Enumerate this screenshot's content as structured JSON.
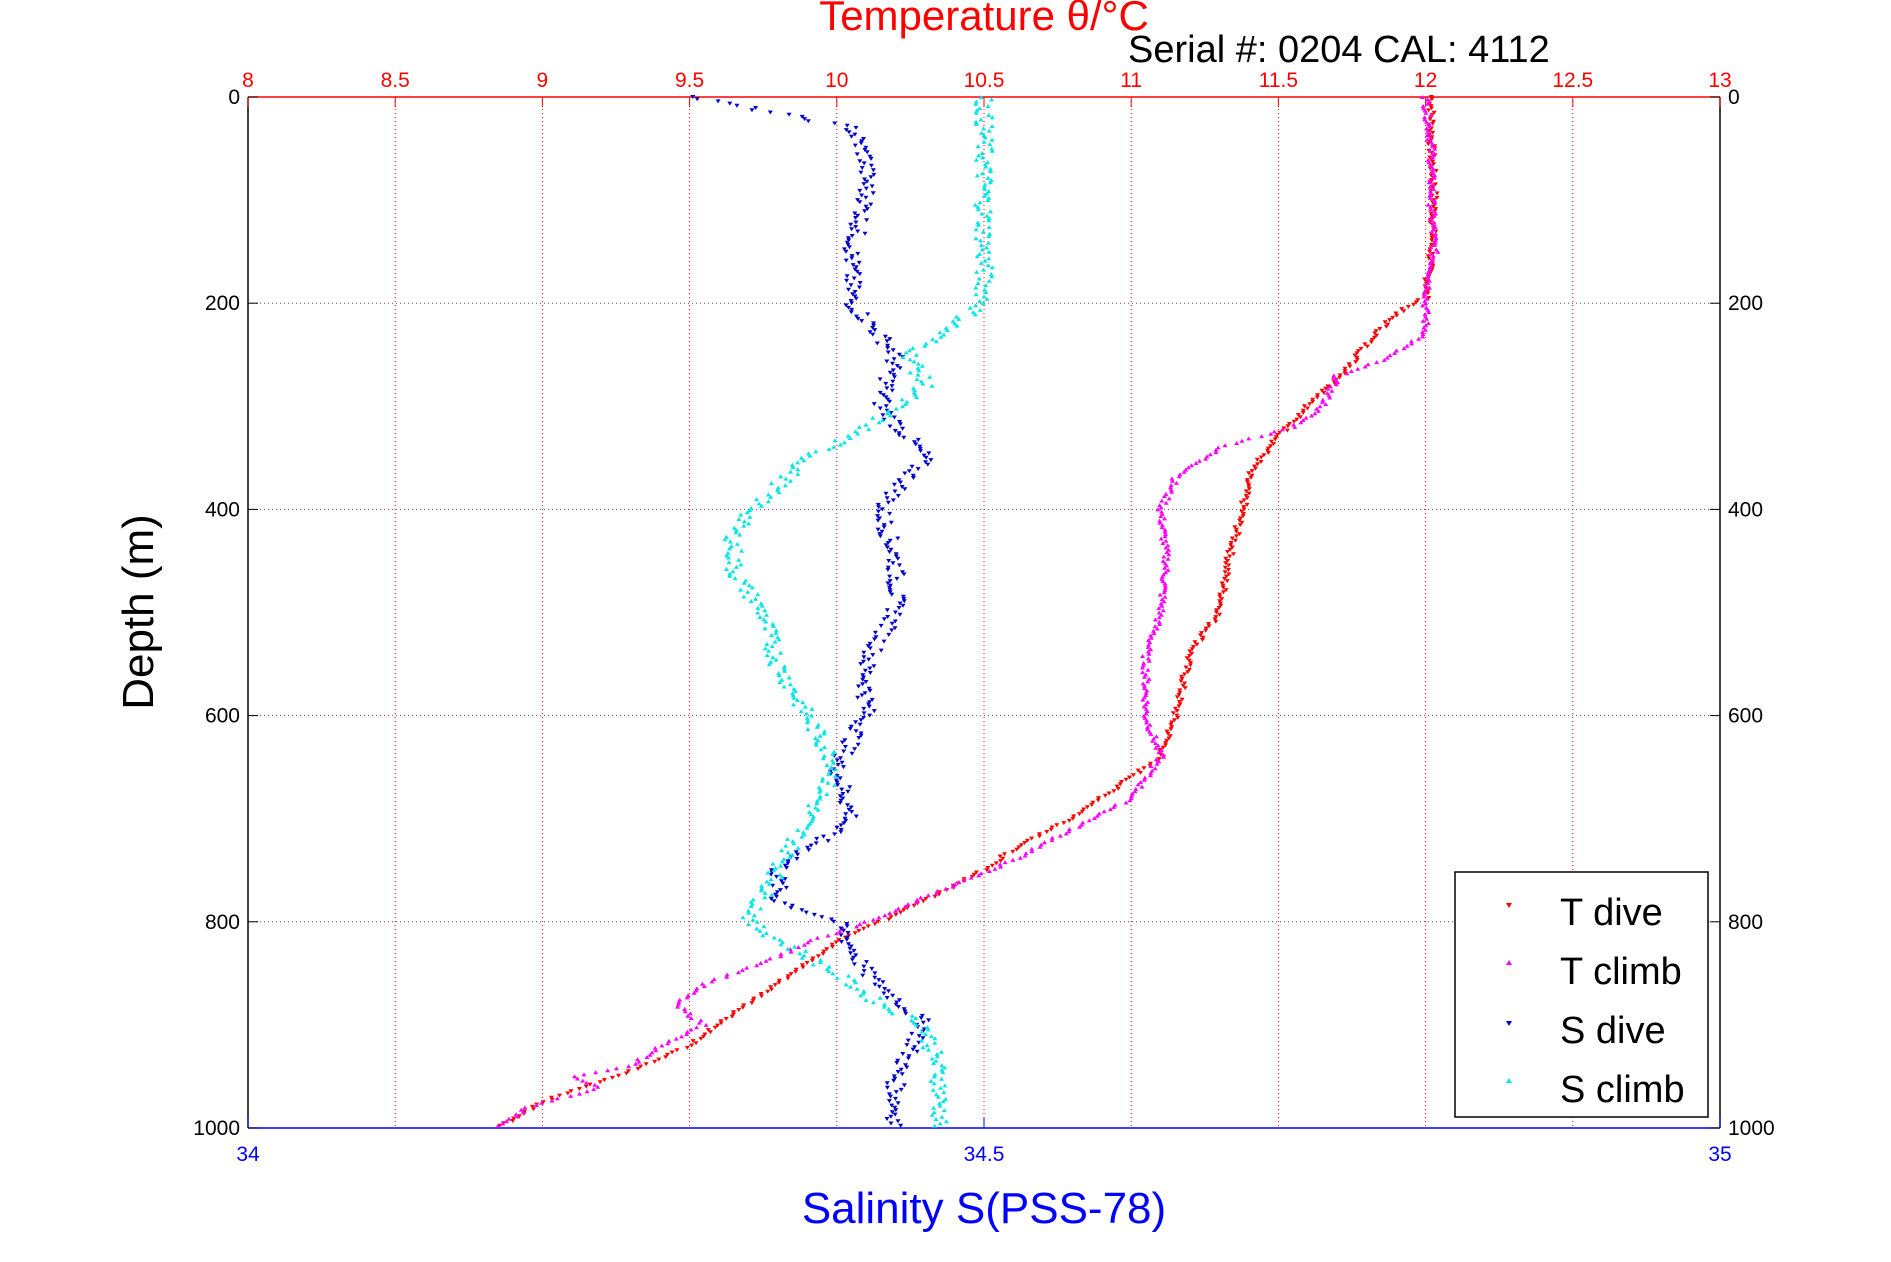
{
  "colors": {
    "temperature_axis": "#ff0000",
    "salinity_axis": "#0000ff",
    "t_dive": "#ff0000",
    "t_climb": "#ff00ff",
    "s_dive": "#0000cc",
    "s_climb": "#00e5e5",
    "grid": "#555555"
  },
  "chart_data": {
    "type": "scatter",
    "title": "Temperature θ/°C",
    "subtitle": "Serial #: 0204  CAL: 4112",
    "xlabel_top": "Temperature θ/°C",
    "xlabel_bottom": "Salinity S(PSS-78)",
    "ylabel": "Depth (m)",
    "temperature_axis": {
      "range": [
        8,
        13
      ],
      "ticks": [
        "8",
        "8.5",
        "9",
        "9.5",
        "10",
        "10.5",
        "11",
        "11.5",
        "12",
        "12.5",
        "13"
      ]
    },
    "salinity_axis": {
      "range": [
        34,
        35
      ],
      "ticks": [
        "34",
        "34.5",
        "35"
      ]
    },
    "depth_axis": {
      "range": [
        0,
        1000
      ],
      "reversed": true,
      "ticks": [
        "0",
        "200",
        "400",
        "600",
        "800",
        "1000"
      ]
    },
    "grid": true,
    "legend_position": "bottom-right",
    "legend": [
      "T dive",
      "T climb",
      "S dive",
      "S climb"
    ],
    "series": [
      {
        "name": "T dive",
        "axis": "temperature",
        "marker": "down-triangle",
        "points": [
          [
            12.02,
            0
          ],
          [
            12.02,
            50
          ],
          [
            12.03,
            100
          ],
          [
            12.02,
            150
          ],
          [
            12.0,
            195
          ],
          [
            11.9,
            210
          ],
          [
            11.8,
            240
          ],
          [
            11.72,
            270
          ],
          [
            11.6,
            300
          ],
          [
            11.5,
            330
          ],
          [
            11.4,
            365
          ],
          [
            11.38,
            400
          ],
          [
            11.33,
            450
          ],
          [
            11.3,
            500
          ],
          [
            11.2,
            540
          ],
          [
            11.15,
            600
          ],
          [
            11.1,
            640
          ],
          [
            11.0,
            660
          ],
          [
            10.8,
            700
          ],
          [
            10.6,
            730
          ],
          [
            10.5,
            750
          ],
          [
            10.3,
            780
          ],
          [
            10.15,
            800
          ],
          [
            10.0,
            820
          ],
          [
            9.9,
            840
          ],
          [
            9.75,
            870
          ],
          [
            9.65,
            890
          ],
          [
            9.5,
            920
          ],
          [
            9.3,
            945
          ],
          [
            9.15,
            960
          ],
          [
            9.0,
            975
          ],
          [
            8.85,
            1000
          ]
        ]
      },
      {
        "name": "T climb",
        "axis": "temperature",
        "marker": "up-triangle",
        "points": [
          [
            12.0,
            0
          ],
          [
            12.02,
            50
          ],
          [
            12.02,
            100
          ],
          [
            12.03,
            150
          ],
          [
            12.0,
            200
          ],
          [
            12.0,
            230
          ],
          [
            11.85,
            255
          ],
          [
            11.7,
            270
          ],
          [
            11.65,
            300
          ],
          [
            11.55,
            320
          ],
          [
            11.3,
            340
          ],
          [
            11.15,
            370
          ],
          [
            11.1,
            400
          ],
          [
            11.12,
            450
          ],
          [
            11.1,
            500
          ],
          [
            11.05,
            540
          ],
          [
            11.05,
            600
          ],
          [
            11.1,
            640
          ],
          [
            11.0,
            680
          ],
          [
            10.8,
            710
          ],
          [
            10.6,
            740
          ],
          [
            10.35,
            770
          ],
          [
            10.1,
            800
          ],
          [
            9.9,
            820
          ],
          [
            9.75,
            840
          ],
          [
            9.55,
            860
          ],
          [
            9.45,
            880
          ],
          [
            9.55,
            900
          ],
          [
            9.4,
            920
          ],
          [
            9.3,
            940
          ],
          [
            9.1,
            950
          ],
          [
            9.2,
            960
          ],
          [
            8.95,
            980
          ],
          [
            8.85,
            1000
          ]
        ]
      },
      {
        "name": "S dive",
        "axis": "salinity",
        "marker": "down-triangle",
        "points": [
          [
            34.3,
            0
          ],
          [
            34.41,
            30
          ],
          [
            34.42,
            60
          ],
          [
            34.42,
            100
          ],
          [
            34.41,
            150
          ],
          [
            34.41,
            200
          ],
          [
            34.44,
            250
          ],
          [
            34.43,
            300
          ],
          [
            34.46,
            350
          ],
          [
            34.43,
            400
          ],
          [
            34.44,
            450
          ],
          [
            34.44,
            500
          ],
          [
            34.42,
            550
          ],
          [
            34.42,
            600
          ],
          [
            34.4,
            650
          ],
          [
            34.41,
            700
          ],
          [
            34.36,
            750
          ],
          [
            34.36,
            780
          ],
          [
            34.4,
            800
          ],
          [
            34.42,
            850
          ],
          [
            34.46,
            900
          ],
          [
            34.44,
            950
          ],
          [
            34.44,
            1000
          ]
        ]
      },
      {
        "name": "S climb",
        "axis": "salinity",
        "marker": "up-triangle",
        "points": [
          [
            34.5,
            0
          ],
          [
            34.5,
            50
          ],
          [
            34.5,
            100
          ],
          [
            34.5,
            150
          ],
          [
            34.5,
            200
          ],
          [
            34.45,
            250
          ],
          [
            34.46,
            280
          ],
          [
            34.42,
            320
          ],
          [
            34.38,
            350
          ],
          [
            34.35,
            390
          ],
          [
            34.33,
            420
          ],
          [
            34.33,
            460
          ],
          [
            34.35,
            500
          ],
          [
            34.36,
            550
          ],
          [
            34.38,
            600
          ],
          [
            34.4,
            650
          ],
          [
            34.38,
            700
          ],
          [
            34.36,
            750
          ],
          [
            34.34,
            800
          ],
          [
            34.4,
            850
          ],
          [
            34.43,
            880
          ],
          [
            34.46,
            900
          ],
          [
            34.47,
            950
          ],
          [
            34.47,
            1000
          ]
        ]
      }
    ]
  }
}
